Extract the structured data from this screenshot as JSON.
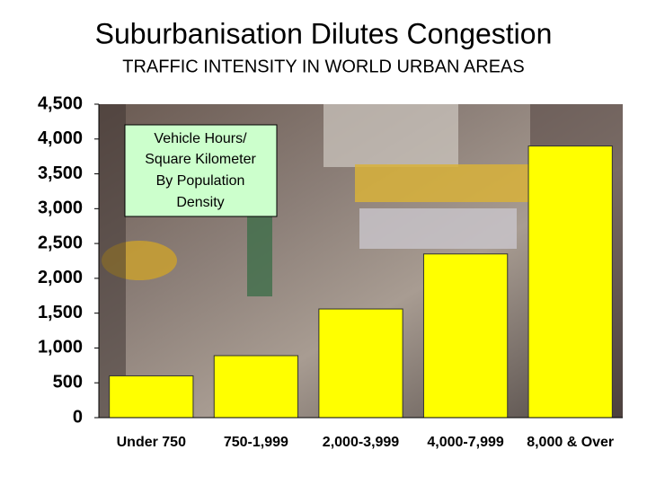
{
  "chart_data": {
    "type": "bar",
    "title": "Suburbanisation Dilutes Congestion",
    "subtitle": "TRAFFIC INTENSITY IN WORLD URBAN AREAS",
    "annotation": [
      "Vehicle Hours/",
      "Square Kilometer",
      "By Population",
      "Density"
    ],
    "categories": [
      "Under 750",
      "750-1,999",
      "2,000-3,999",
      "4,000-7,999",
      "8,000 & Over"
    ],
    "values": [
      600,
      890,
      1560,
      2350,
      3900
    ],
    "color": "#ffff00",
    "ylim": [
      0,
      4500
    ],
    "yticks": [
      0,
      500,
      {
        "value": 1000,
        "label": "1,000"
      },
      {
        "value": 1500,
        "label": "1,500"
      },
      {
        "value": 2000,
        "label": "2,000"
      },
      {
        "value": 2500,
        "label": "2,500"
      },
      {
        "value": 3000,
        "label": "3,000"
      },
      {
        "value": 3500,
        "label": "3,500"
      },
      {
        "value": 4000,
        "label": "4,000"
      },
      {
        "value": 4500,
        "label": "4,500"
      }
    ]
  }
}
